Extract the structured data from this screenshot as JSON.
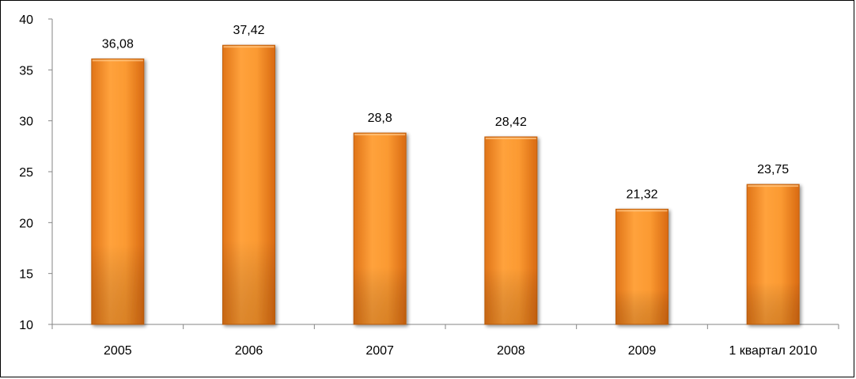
{
  "chart_data": {
    "type": "bar",
    "categories": [
      "2005",
      "2006",
      "2007",
      "2008",
      "2009",
      "1 квартал 2010"
    ],
    "values": [
      36.08,
      37.42,
      28.8,
      28.42,
      21.32,
      23.75
    ],
    "value_labels": [
      "36,08",
      "37,42",
      "28,8",
      "28,42",
      "21,32",
      "23,75"
    ],
    "title": "",
    "xlabel": "",
    "ylabel": "",
    "ylim": [
      10,
      40
    ],
    "yticks": [
      10,
      15,
      20,
      25,
      30,
      35,
      40
    ],
    "grid": false,
    "legend": "none",
    "bar_color": "#F7941D",
    "bar_edge_color": "#C0600F"
  }
}
